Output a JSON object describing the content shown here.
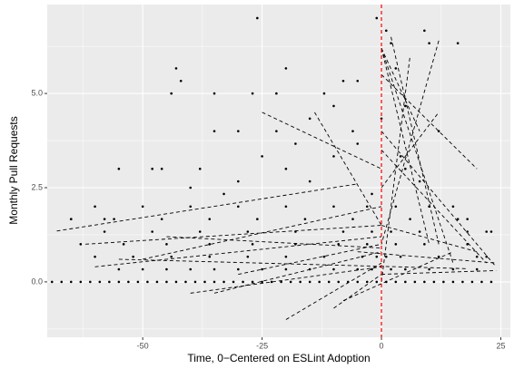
{
  "chart_data": {
    "type": "scatter",
    "x_label": "Time, 0−Centered on ESLint Adoption",
    "y_label": "Monthly Pull Requests",
    "xlim": [
      -70,
      27
    ],
    "ylim": [
      -1.47,
      7.36
    ],
    "xticks": [
      -50,
      -25,
      0,
      25
    ],
    "yticks": [
      {
        "value": 0,
        "label": "0.0"
      },
      {
        "value": 2.5,
        "label": "2.5"
      },
      {
        "value": 5,
        "label": "5.0"
      }
    ],
    "x_minor_grid": [
      -62.5,
      -37.5,
      -12.5,
      12.5
    ],
    "y_minor_grid": [
      -1.25,
      1.25,
      3.75,
      6.25
    ],
    "grid": true,
    "vline": 0,
    "vline_color": "#ff0000",
    "point_color": "#000000",
    "line_color": "#000000",
    "points": {
      "x": [
        -69,
        -67,
        -65,
        -63,
        -61,
        -59,
        -57,
        -55,
        -53,
        -51,
        -49,
        -47,
        -45,
        -43,
        -41,
        -39,
        -37,
        -35,
        -33,
        -31,
        -29,
        -27,
        -25,
        -23,
        -21,
        -19,
        -17,
        -15,
        -13,
        -11,
        -9,
        -7,
        -5,
        -3,
        -1,
        1,
        3,
        5,
        7,
        9,
        11,
        13,
        15,
        17,
        19,
        21,
        23,
        -55,
        -50,
        -45,
        -40,
        -35,
        -30,
        -25,
        -20,
        -15,
        -10,
        -5,
        -2,
        2,
        5,
        10,
        15,
        20,
        -60,
        -52,
        -44,
        -36,
        -28,
        -20,
        -12,
        -4,
        -1,
        1,
        4,
        12,
        20,
        22,
        -63,
        -54,
        -45,
        -36,
        -27,
        -18,
        -9,
        -3,
        3,
        9,
        18,
        -58,
        -48,
        -38,
        -28,
        -18,
        -8,
        -2,
        2,
        8,
        18,
        23,
        -65,
        -56,
        -46,
        -36,
        -26,
        -16,
        -6,
        6,
        16,
        -60,
        -50,
        -40,
        -30,
        -20,
        -10,
        -3,
        3,
        10,
        15,
        -43,
        -44,
        -42,
        -26,
        -1,
        1,
        2,
        3,
        10,
        16,
        9,
        -20,
        -35,
        -27,
        -22,
        -8,
        -5,
        -12,
        -55,
        -48,
        -46,
        -38,
        -35,
        -30,
        -22,
        -15,
        -10,
        5,
        12,
        -40,
        -30,
        -20,
        -10,
        -5,
        5,
        8,
        18,
        22,
        -65,
        -58,
        -25,
        -18,
        -6,
        0,
        4,
        -33,
        -15,
        -2
      ],
      "y": [
        0,
        0,
        0,
        0,
        0,
        0,
        0,
        0,
        0,
        0,
        0,
        0,
        0,
        0,
        0,
        0,
        0,
        0,
        0,
        0,
        0,
        0,
        0,
        0,
        0,
        0,
        0,
        0,
        0,
        0,
        0,
        0,
        0,
        0,
        0,
        0,
        0,
        0,
        0,
        0,
        0,
        0,
        0,
        0,
        0,
        0,
        0,
        0.333,
        0.333,
        0.333,
        0.333,
        0.333,
        0.333,
        0.333,
        0.333,
        0.333,
        0.333,
        0.333,
        0.333,
        0.333,
        0.333,
        0.333,
        0.333,
        0.333,
        0.667,
        0.667,
        0.667,
        0.667,
        0.667,
        0.667,
        0.667,
        0.667,
        0.667,
        0.667,
        0.667,
        0.667,
        0.667,
        0.667,
        1,
        1,
        1,
        1,
        1,
        1,
        1,
        1,
        1,
        1,
        1,
        1.333,
        1.333,
        1.333,
        1.333,
        1.333,
        1.333,
        1.333,
        1.333,
        1.333,
        1.333,
        1.333,
        1.667,
        1.667,
        1.667,
        1.667,
        1.667,
        1.667,
        1.667,
        1.667,
        1.667,
        2,
        2,
        2,
        2,
        2,
        2,
        2,
        2,
        2,
        2,
        5.667,
        5,
        5.333,
        7,
        7,
        6.667,
        6.333,
        5.667,
        6.333,
        6.333,
        6.667,
        5.667,
        5,
        5,
        5,
        5.333,
        5.333,
        5,
        3,
        3,
        3,
        3,
        4,
        4,
        4,
        4.333,
        4.667,
        4.667,
        4,
        2.5,
        2.667,
        3,
        3.333,
        3.667,
        3,
        2.667,
        1.667,
        1.333,
        1.667,
        1.667,
        3.333,
        3.667,
        4,
        4.333,
        3.333,
        2.333,
        2.667,
        2.333
      ]
    },
    "segments": [
      {
        "x": [
          -68,
          -5
        ],
        "y": [
          1.35,
          2.6
        ]
      },
      {
        "x": [
          -62,
          0
        ],
        "y": [
          1.0,
          1.5
        ]
      },
      {
        "x": [
          -60,
          0
        ],
        "y": [
          0.4,
          1.2
        ]
      },
      {
        "x": [
          -55,
          18
        ],
        "y": [
          0.6,
          0.35
        ]
      },
      {
        "x": [
          -40,
          0
        ],
        "y": [
          -0.3,
          0.4
        ]
      },
      {
        "x": [
          -20,
          0
        ],
        "y": [
          -1,
          0.5
        ]
      },
      {
        "x": [
          -10,
          0
        ],
        "y": [
          -0.7,
          0.2
        ]
      },
      {
        "x": [
          -25,
          0
        ],
        "y": [
          4.5,
          3
        ]
      },
      {
        "x": [
          -14,
          0
        ],
        "y": [
          4.5,
          1.5
        ]
      },
      {
        "x": [
          0,
          10
        ],
        "y": [
          6.2,
          1
        ]
      },
      {
        "x": [
          0,
          15
        ],
        "y": [
          6.2,
          0.5
        ]
      },
      {
        "x": [
          0,
          8
        ],
        "y": [
          6.2,
          4
        ]
      },
      {
        "x": [
          2,
          12
        ],
        "y": [
          6.5,
          1
        ]
      },
      {
        "x": [
          12,
          0
        ],
        "y": [
          6.4,
          1
        ]
      },
      {
        "x": [
          0,
          20
        ],
        "y": [
          5.5,
          3
        ]
      },
      {
        "x": [
          0,
          22
        ],
        "y": [
          3.5,
          0.5
        ]
      },
      {
        "x": [
          0,
          24
        ],
        "y": [
          4,
          0.4
        ]
      },
      {
        "x": [
          -5,
          24
        ],
        "y": [
          0.8,
          0.5
        ]
      },
      {
        "x": [
          -30,
          0
        ],
        "y": [
          0.2,
          1
        ]
      },
      {
        "x": [
          0,
          24
        ],
        "y": [
          0.2,
          0.3
        ]
      },
      {
        "x": [
          -50,
          0
        ],
        "y": [
          0.6,
          2
        ]
      },
      {
        "x": [
          -35,
          0
        ],
        "y": [
          -0.3,
          0.8
        ]
      },
      {
        "x": [
          0,
          12
        ],
        "y": [
          2.5,
          4.5
        ]
      },
      {
        "x": [
          0,
          20
        ],
        "y": [
          1.5,
          0.8
        ]
      },
      {
        "x": [
          -8,
          15
        ],
        "y": [
          -0.5,
          0.8
        ]
      },
      {
        "x": [
          -45,
          0
        ],
        "y": [
          1.2,
          0.9
        ]
      },
      {
        "x": [
          0,
          6
        ],
        "y": [
          0,
          6
        ]
      }
    ]
  }
}
